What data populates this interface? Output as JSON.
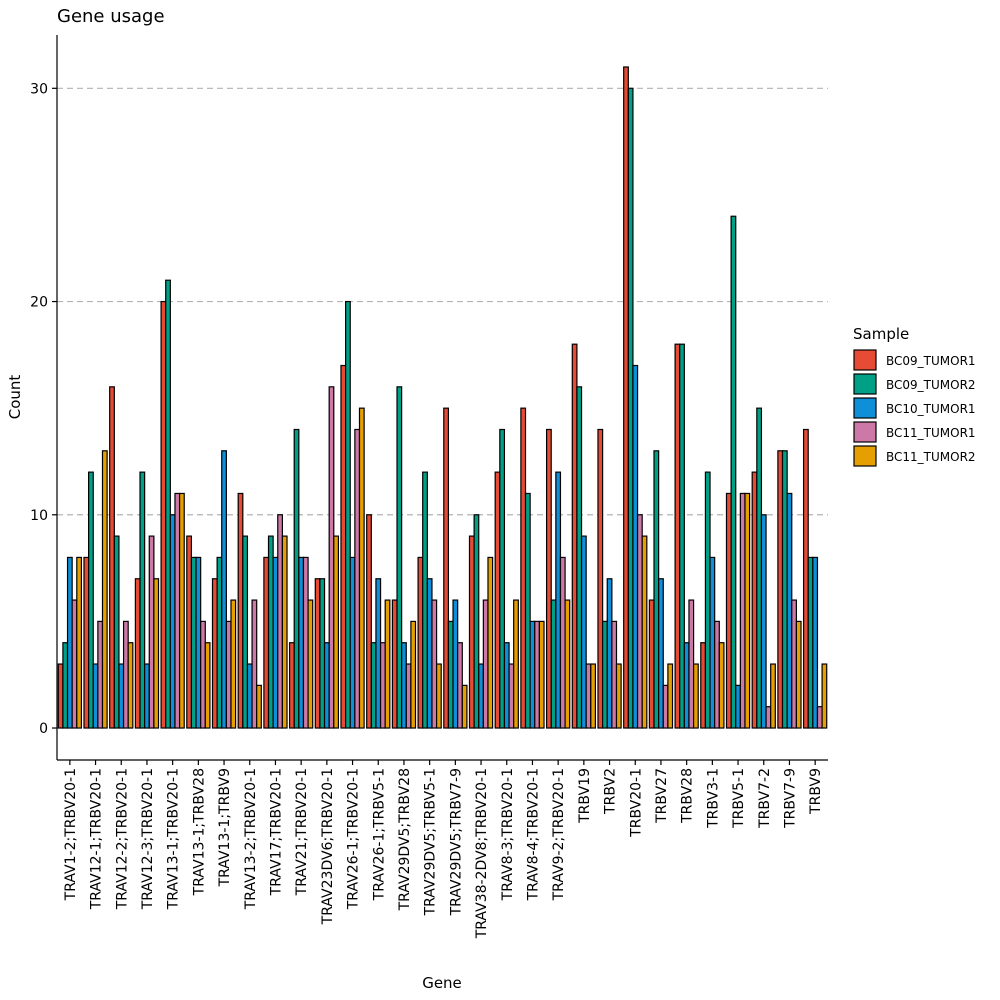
{
  "chart_data": {
    "type": "bar",
    "title": "Gene usage",
    "xlabel": "Gene",
    "ylabel": "Count",
    "ylim": [
      -1.5,
      32.5
    ],
    "yticks": [
      0,
      10,
      20,
      30
    ],
    "grid": "horizontal dashed at major y ticks",
    "legend_title": "Sample",
    "legend_position": "right",
    "categories": [
      "TRAV1-2;TRBV20-1",
      "TRAV12-1;TRBV20-1",
      "TRAV12-2;TRBV20-1",
      "TRAV12-3;TRBV20-1",
      "TRAV13-1;TRBV20-1",
      "TRAV13-1;TRBV28",
      "TRAV13-1;TRBV9",
      "TRAV13-2;TRBV20-1",
      "TRAV17;TRBV20-1",
      "TRAV21;TRBV20-1",
      "TRAV23DV6;TRBV20-1",
      "TRAV26-1;TRBV20-1",
      "TRAV26-1;TRBV5-1",
      "TRAV29DV5;TRBV28",
      "TRAV29DV5;TRBV5-1",
      "TRAV29DV5;TRBV7-9",
      "TRAV38-2DV8;TRBV20-1",
      "TRAV8-3;TRBV20-1",
      "TRAV8-4;TRBV20-1",
      "TRAV9-2;TRBV20-1",
      "TRBV19",
      "TRBV2",
      "TRBV20-1",
      "TRBV27",
      "TRBV28",
      "TRBV3-1",
      "TRBV5-1",
      "TRBV7-2",
      "TRBV7-9",
      "TRBV9"
    ],
    "series": [
      {
        "name": "BC09_TUMOR1",
        "color": "#E64B35",
        "values": [
          3,
          8,
          16,
          7,
          20,
          9,
          7,
          11,
          8,
          4,
          7,
          17,
          10,
          6,
          8,
          15,
          9,
          12,
          15,
          14,
          18,
          14,
          31,
          6,
          18,
          4,
          11,
          12,
          13,
          14
        ]
      },
      {
        "name": "BC09_TUMOR2",
        "color": "#00A087",
        "values": [
          4,
          12,
          9,
          12,
          21,
          8,
          8,
          9,
          9,
          14,
          7,
          20,
          4,
          16,
          12,
          5,
          10,
          14,
          11,
          6,
          16,
          5,
          30,
          13,
          18,
          12,
          24,
          15,
          13,
          8
        ]
      },
      {
        "name": "BC10_TUMOR1",
        "color": "#0F8FD8",
        "values": [
          8,
          3,
          3,
          3,
          10,
          8,
          13,
          3,
          8,
          8,
          4,
          8,
          7,
          4,
          7,
          6,
          3,
          4,
          5,
          12,
          9,
          7,
          17,
          7,
          4,
          8,
          2,
          10,
          11,
          8
        ]
      },
      {
        "name": "BC11_TUMOR1",
        "color": "#CC79A7",
        "values": [
          6,
          5,
          5,
          9,
          11,
          5,
          5,
          6,
          10,
          8,
          16,
          14,
          4,
          3,
          6,
          4,
          6,
          3,
          5,
          8,
          3,
          5,
          10,
          2,
          6,
          5,
          11,
          1,
          6,
          1
        ]
      },
      {
        "name": "BC11_TUMOR2",
        "color": "#E69F00",
        "values": [
          8,
          13,
          4,
          7,
          11,
          4,
          6,
          2,
          9,
          6,
          9,
          15,
          6,
          5,
          3,
          2,
          8,
          6,
          5,
          6,
          3,
          3,
          9,
          3,
          3,
          4,
          11,
          3,
          5,
          3
        ]
      }
    ]
  }
}
